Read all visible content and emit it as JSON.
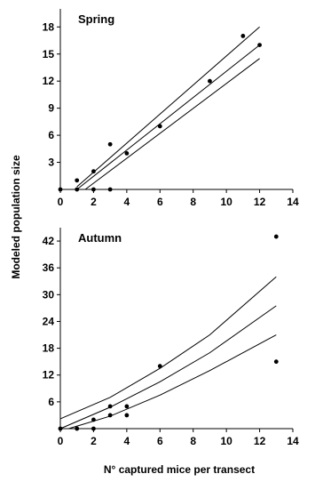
{
  "ylabel": "Modeled population size",
  "xlabel": "N° captured mice per transect",
  "chart_data": [
    {
      "type": "scatter",
      "panel_label": "Spring",
      "xlim": [
        0,
        14
      ],
      "ylim": [
        0,
        20
      ],
      "x_ticks": [
        "0",
        "2",
        "4",
        "6",
        "8",
        "10",
        "12",
        "14"
      ],
      "y_ticks": [
        "3",
        "6",
        "9",
        "12",
        "15",
        "18"
      ],
      "points": [
        {
          "x": 0,
          "y": 0
        },
        {
          "x": 1,
          "y": 0
        },
        {
          "x": 1,
          "y": 1
        },
        {
          "x": 2,
          "y": 0
        },
        {
          "x": 2,
          "y": 2
        },
        {
          "x": 3,
          "y": 0
        },
        {
          "x": 3,
          "y": 5
        },
        {
          "x": 4,
          "y": 4
        },
        {
          "x": 6,
          "y": 7
        },
        {
          "x": 9,
          "y": 12
        },
        {
          "x": 11,
          "y": 17
        },
        {
          "x": 12,
          "y": 16
        }
      ],
      "fit_lines": [
        {
          "role": "upper",
          "x": [
            1,
            12
          ],
          "y": [
            0.3,
            18
          ]
        },
        {
          "role": "fit",
          "x": [
            1,
            12
          ],
          "y": [
            0,
            16
          ]
        },
        {
          "role": "lower",
          "x": [
            1.5,
            12
          ],
          "y": [
            0,
            14.5
          ]
        }
      ]
    },
    {
      "type": "scatter",
      "panel_label": "Autumn",
      "xlim": [
        0,
        14
      ],
      "ylim": [
        0,
        45
      ],
      "x_ticks": [
        "0",
        "2",
        "4",
        "6",
        "8",
        "10",
        "12",
        "14"
      ],
      "y_ticks": [
        "6",
        "12",
        "18",
        "24",
        "30",
        "36",
        "42"
      ],
      "points": [
        {
          "x": 0,
          "y": 0
        },
        {
          "x": 1,
          "y": 0
        },
        {
          "x": 2,
          "y": 0
        },
        {
          "x": 2,
          "y": 2
        },
        {
          "x": 3,
          "y": 3
        },
        {
          "x": 3,
          "y": 5
        },
        {
          "x": 4,
          "y": 3
        },
        {
          "x": 4,
          "y": 5
        },
        {
          "x": 6,
          "y": 14
        },
        {
          "x": 13,
          "y": 15
        },
        {
          "x": 13,
          "y": 43
        }
      ],
      "fit_lines": [
        {
          "role": "upper",
          "x": [
            0,
            3,
            6,
            9,
            13
          ],
          "y": [
            2.2,
            7,
            13.5,
            21,
            34
          ]
        },
        {
          "role": "fit",
          "x": [
            0,
            3,
            6,
            9,
            13
          ],
          "y": [
            0,
            4.8,
            10.5,
            17,
            27.5
          ]
        },
        {
          "role": "lower",
          "x": [
            0.5,
            3,
            6,
            9,
            13
          ],
          "y": [
            0,
            2.8,
            7.5,
            13,
            21
          ]
        }
      ]
    }
  ]
}
